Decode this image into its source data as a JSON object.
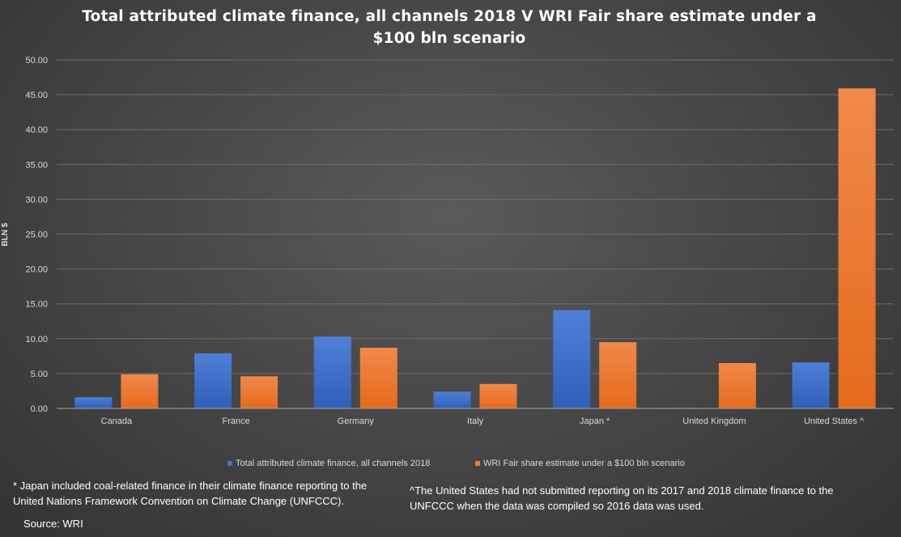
{
  "title": "Total attributed climate finance, all channels 2018 V WRI Fair share estimate under a $100 bln scenario",
  "chart_data": {
    "type": "bar",
    "ylabel": "BLN $",
    "xlabel": "",
    "ylim": [
      0,
      50
    ],
    "ytick_step": 5,
    "yticks": [
      "0.00",
      "5.00",
      "10.00",
      "15.00",
      "20.00",
      "25.00",
      "30.00",
      "35.00",
      "40.00",
      "45.00",
      "50.00"
    ],
    "grid": true,
    "legend_position": "bottom",
    "categories": [
      "Canada",
      "France",
      "Germany",
      "Italy",
      "Japan *",
      "United Kingdom",
      "United States ^"
    ],
    "series": [
      {
        "name": "Total attributed climate finance, all channels 2018",
        "color": "#4472c4",
        "values": [
          1.6,
          7.9,
          10.3,
          2.4,
          14.1,
          0,
          6.6
        ]
      },
      {
        "name": "WRI Fair share estimate under a $100 bln scenario",
        "color": "#ed7d31",
        "values": [
          4.9,
          4.6,
          8.7,
          3.5,
          9.5,
          6.5,
          45.9
        ]
      }
    ]
  },
  "notes": {
    "japan": "* Japan included coal-related finance in their climate finance reporting to the United Nations Framework Convention on Climate Change (UNFCCC).",
    "us": "^The United States had not submitted reporting on its 2017 and 2018 climate finance to the UNFCCC when the data was compiled so 2016 data was used."
  },
  "source": "Source: WRI"
}
